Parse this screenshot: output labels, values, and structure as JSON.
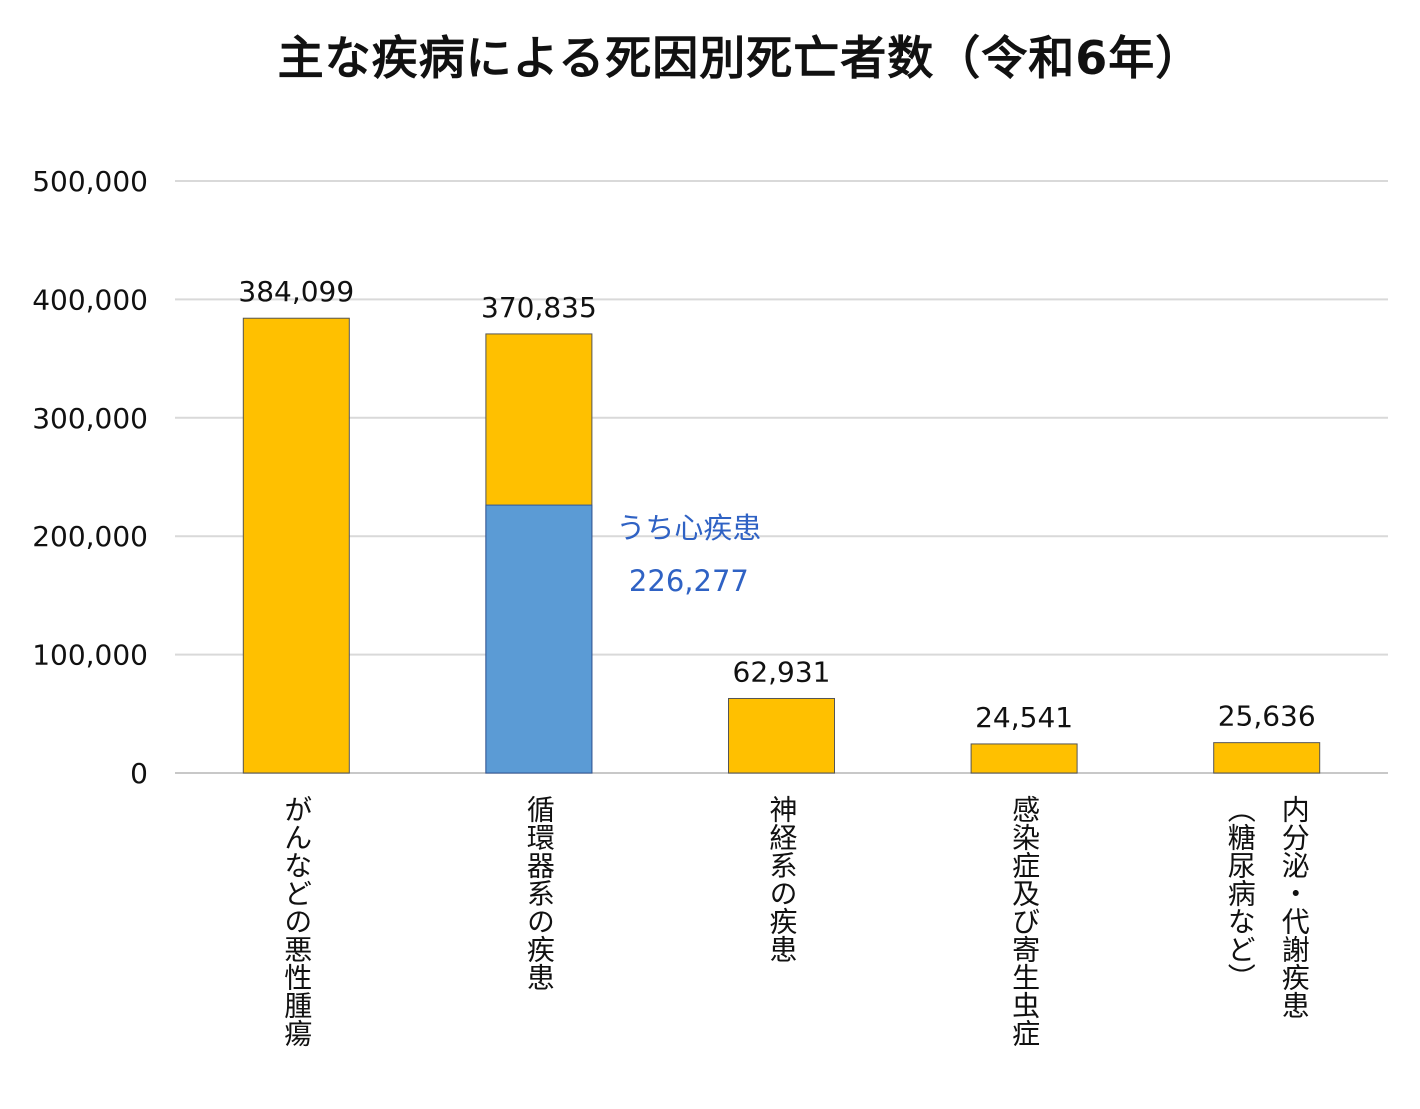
{
  "chart_data": {
    "type": "bar",
    "title": "主な疾病による死因別死亡者数（令和6年）",
    "categories": [
      "がんなどの悪性腫瘍",
      "循環器系の疾患",
      "神経系の疾患",
      "感染症及び寄生虫症",
      "内分泌・代謝疾患\n（糖尿病など）"
    ],
    "series": [
      {
        "values": [
          384099,
          370835,
          62931,
          24541,
          25636
        ],
        "color": "#FFC000"
      }
    ],
    "data_labels": [
      "384,099",
      "370,835",
      "62,931",
      "24,541",
      "25,636"
    ],
    "sub_bar": {
      "category_index": 1,
      "value": 226277,
      "color": "#5B9BD5",
      "label": "うち心疾患",
      "value_label": "226,277",
      "label_color": "#2F62C4"
    },
    "ylim": [
      0,
      500000
    ],
    "yticks": [
      0,
      100000,
      200000,
      300000,
      400000,
      500000
    ],
    "ytick_labels": [
      "0",
      "100,000",
      "200,000",
      "300,000",
      "400,000",
      "500,000"
    ],
    "grid": true,
    "xlabel": "",
    "ylabel": ""
  }
}
